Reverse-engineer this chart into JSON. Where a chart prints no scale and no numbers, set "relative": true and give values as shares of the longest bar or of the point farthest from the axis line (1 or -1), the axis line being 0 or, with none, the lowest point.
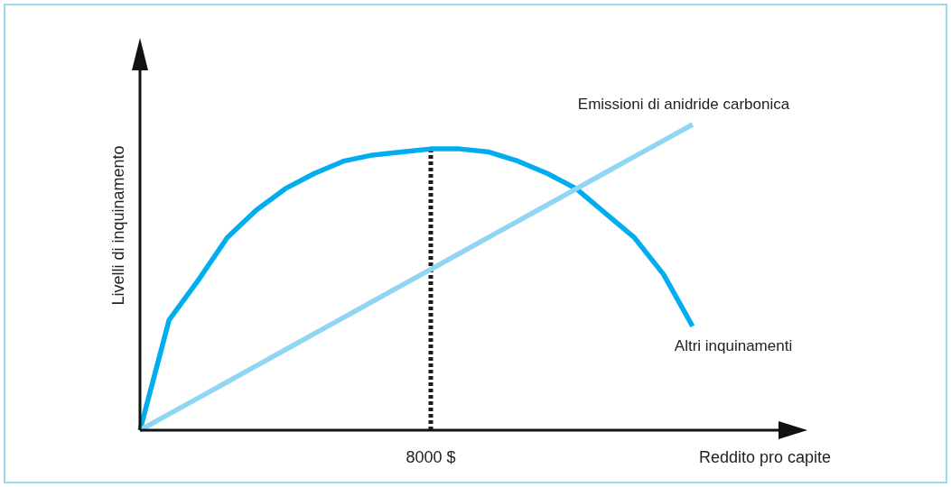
{
  "chart_data": {
    "type": "line",
    "relative": true,
    "xlabel": "Reddito pro capite",
    "ylabel": "Livelli di inquinamento",
    "categories": [
      null,
      null,
      null,
      null,
      null,
      null,
      null,
      null,
      null,
      null,
      null,
      null,
      null,
      null,
      null,
      null,
      null,
      null,
      null,
      null
    ],
    "series": [
      {
        "name": "Altri inquinamenti",
        "color": "#00aeef",
        "values": [
          0,
          0.36,
          0.49,
          0.63,
          0.72,
          0.79,
          0.84,
          0.88,
          0.9,
          0.91,
          0.92,
          0.92,
          0.91,
          0.88,
          0.84,
          0.79,
          0.71,
          0.63,
          0.51,
          0.34
        ]
      },
      {
        "name": "Emissioni di anidride carbonica",
        "color": "#8fd6f5",
        "values": [
          0,
          0.0526,
          0.1053,
          0.1579,
          0.2105,
          0.2632,
          0.3158,
          0.3684,
          0.4211,
          0.4737,
          0.5263,
          0.5789,
          0.6316,
          0.6842,
          0.7368,
          0.7895,
          0.8421,
          0.8947,
          0.9474,
          1
        ]
      }
    ],
    "annotations": [
      "8000 $"
    ],
    "legend": false,
    "marker": "none",
    "line_style": "solid"
  }
}
